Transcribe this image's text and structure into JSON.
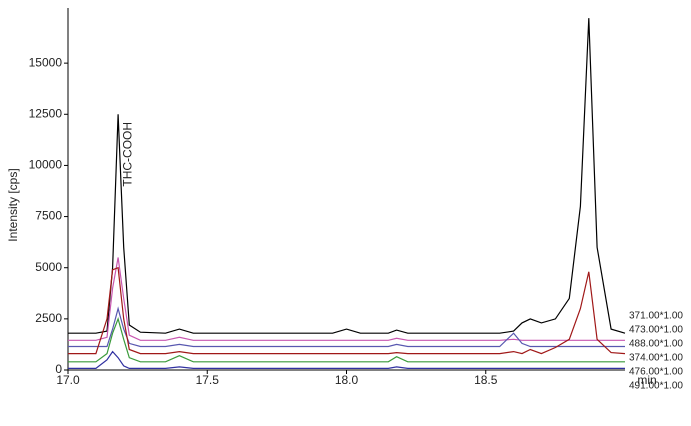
{
  "chart_data": {
    "type": "line",
    "y_label": "Intensity [cps]",
    "x_label": "min",
    "annotation": "THC-COOH",
    "x": [
      17.0,
      17.1,
      17.14,
      17.16,
      17.18,
      17.2,
      17.22,
      17.26,
      17.35,
      17.4,
      17.45,
      17.6,
      17.8,
      17.95,
      18.0,
      18.05,
      18.15,
      18.18,
      18.22,
      18.4,
      18.55,
      18.6,
      18.63,
      18.66,
      18.7,
      18.75,
      18.8,
      18.84,
      18.87,
      18.9,
      18.95,
      19.0
    ],
    "xlim": [
      17.0,
      19.0
    ],
    "xticks": [
      {
        "value": 17.0,
        "label": "17.0"
      },
      17.5,
      {
        "value": 18.0,
        "label": "18.0"
      },
      18.5
    ],
    "ylim": [
      0,
      17500
    ],
    "yticks": [
      0,
      2500,
      5000,
      7500,
      10000,
      12500,
      15000
    ],
    "grid": false,
    "series": [
      {
        "name": "371.00*1.00",
        "color": "#000000",
        "values": [
          1800,
          1800,
          1900,
          5000,
          12500,
          6000,
          2200,
          1850,
          1800,
          2000,
          1800,
          1800,
          1800,
          1800,
          2000,
          1800,
          1800,
          1950,
          1800,
          1800,
          1800,
          1900,
          2300,
          2500,
          2300,
          2500,
          3500,
          8000,
          17200,
          6000,
          2000,
          1800
        ]
      },
      {
        "name": "473.00*1.00",
        "color": "#c857b0",
        "values": [
          1450,
          1450,
          1600,
          4000,
          5500,
          3500,
          1700,
          1450,
          1450,
          1600,
          1450,
          1450,
          1450,
          1450,
          1450,
          1450,
          1450,
          1550,
          1450,
          1450,
          1450,
          1500,
          1450,
          1450,
          1450,
          1450,
          1450,
          1450,
          1450,
          1450,
          1450,
          1450
        ]
      },
      {
        "name": "488.00*1.00",
        "color": "#5858b0",
        "values": [
          1150,
          1150,
          1150,
          2000,
          3000,
          2000,
          1300,
          1150,
          1150,
          1250,
          1150,
          1150,
          1150,
          1150,
          1150,
          1150,
          1150,
          1250,
          1150,
          1150,
          1150,
          1800,
          1300,
          1150,
          1150,
          1150,
          1150,
          1150,
          1150,
          1150,
          1150,
          1150
        ]
      },
      {
        "name": "374.00*1.00",
        "color": "#a01818",
        "values": [
          800,
          800,
          2500,
          4900,
          5000,
          2500,
          1000,
          800,
          800,
          900,
          800,
          800,
          800,
          800,
          800,
          800,
          800,
          850,
          800,
          800,
          800,
          900,
          800,
          1000,
          800,
          1100,
          1500,
          3000,
          4800,
          1500,
          850,
          800
        ]
      },
      {
        "name": "476.00*1.00",
        "color": "#3a9a3a",
        "values": [
          400,
          400,
          800,
          1800,
          2500,
          1500,
          600,
          400,
          400,
          700,
          400,
          400,
          400,
          400,
          400,
          400,
          400,
          650,
          400,
          400,
          400,
          400,
          400,
          400,
          400,
          400,
          400,
          400,
          400,
          400,
          400,
          400
        ]
      },
      {
        "name": "491.00*1.00",
        "color": "#3030a0",
        "values": [
          80,
          80,
          500,
          900,
          600,
          200,
          80,
          80,
          80,
          150,
          80,
          80,
          80,
          80,
          80,
          80,
          80,
          150,
          80,
          80,
          80,
          80,
          80,
          80,
          80,
          80,
          80,
          80,
          80,
          80,
          80,
          80
        ]
      }
    ]
  }
}
